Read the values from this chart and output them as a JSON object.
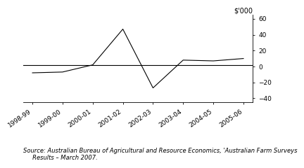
{
  "x_labels": [
    "1998-99",
    "1999-00",
    "2000-01",
    "2001-02",
    "2002-03",
    "2003-04",
    "2004-05",
    "2005-06"
  ],
  "x_values": [
    0,
    1,
    2,
    3,
    4,
    5,
    6,
    7
  ],
  "y_values": [
    -8,
    -7,
    2,
    47,
    -27,
    8,
    7,
    10
  ],
  "reference_line_y": 2,
  "ylim": [
    -45,
    65
  ],
  "yticks": [
    -40,
    -20,
    0,
    20,
    40,
    60
  ],
  "ylabel": "$'000",
  "line_color": "#000000",
  "ref_line_color": "#000000",
  "background_color": "#ffffff",
  "source_text": "Source: Australian Bureau of Agricultural and Resource Economics, 'Australian Farm Surveys\n     Results – March 2007.",
  "source_fontsize": 6.0,
  "tick_fontsize": 6.5,
  "ylabel_fontsize": 7.0
}
